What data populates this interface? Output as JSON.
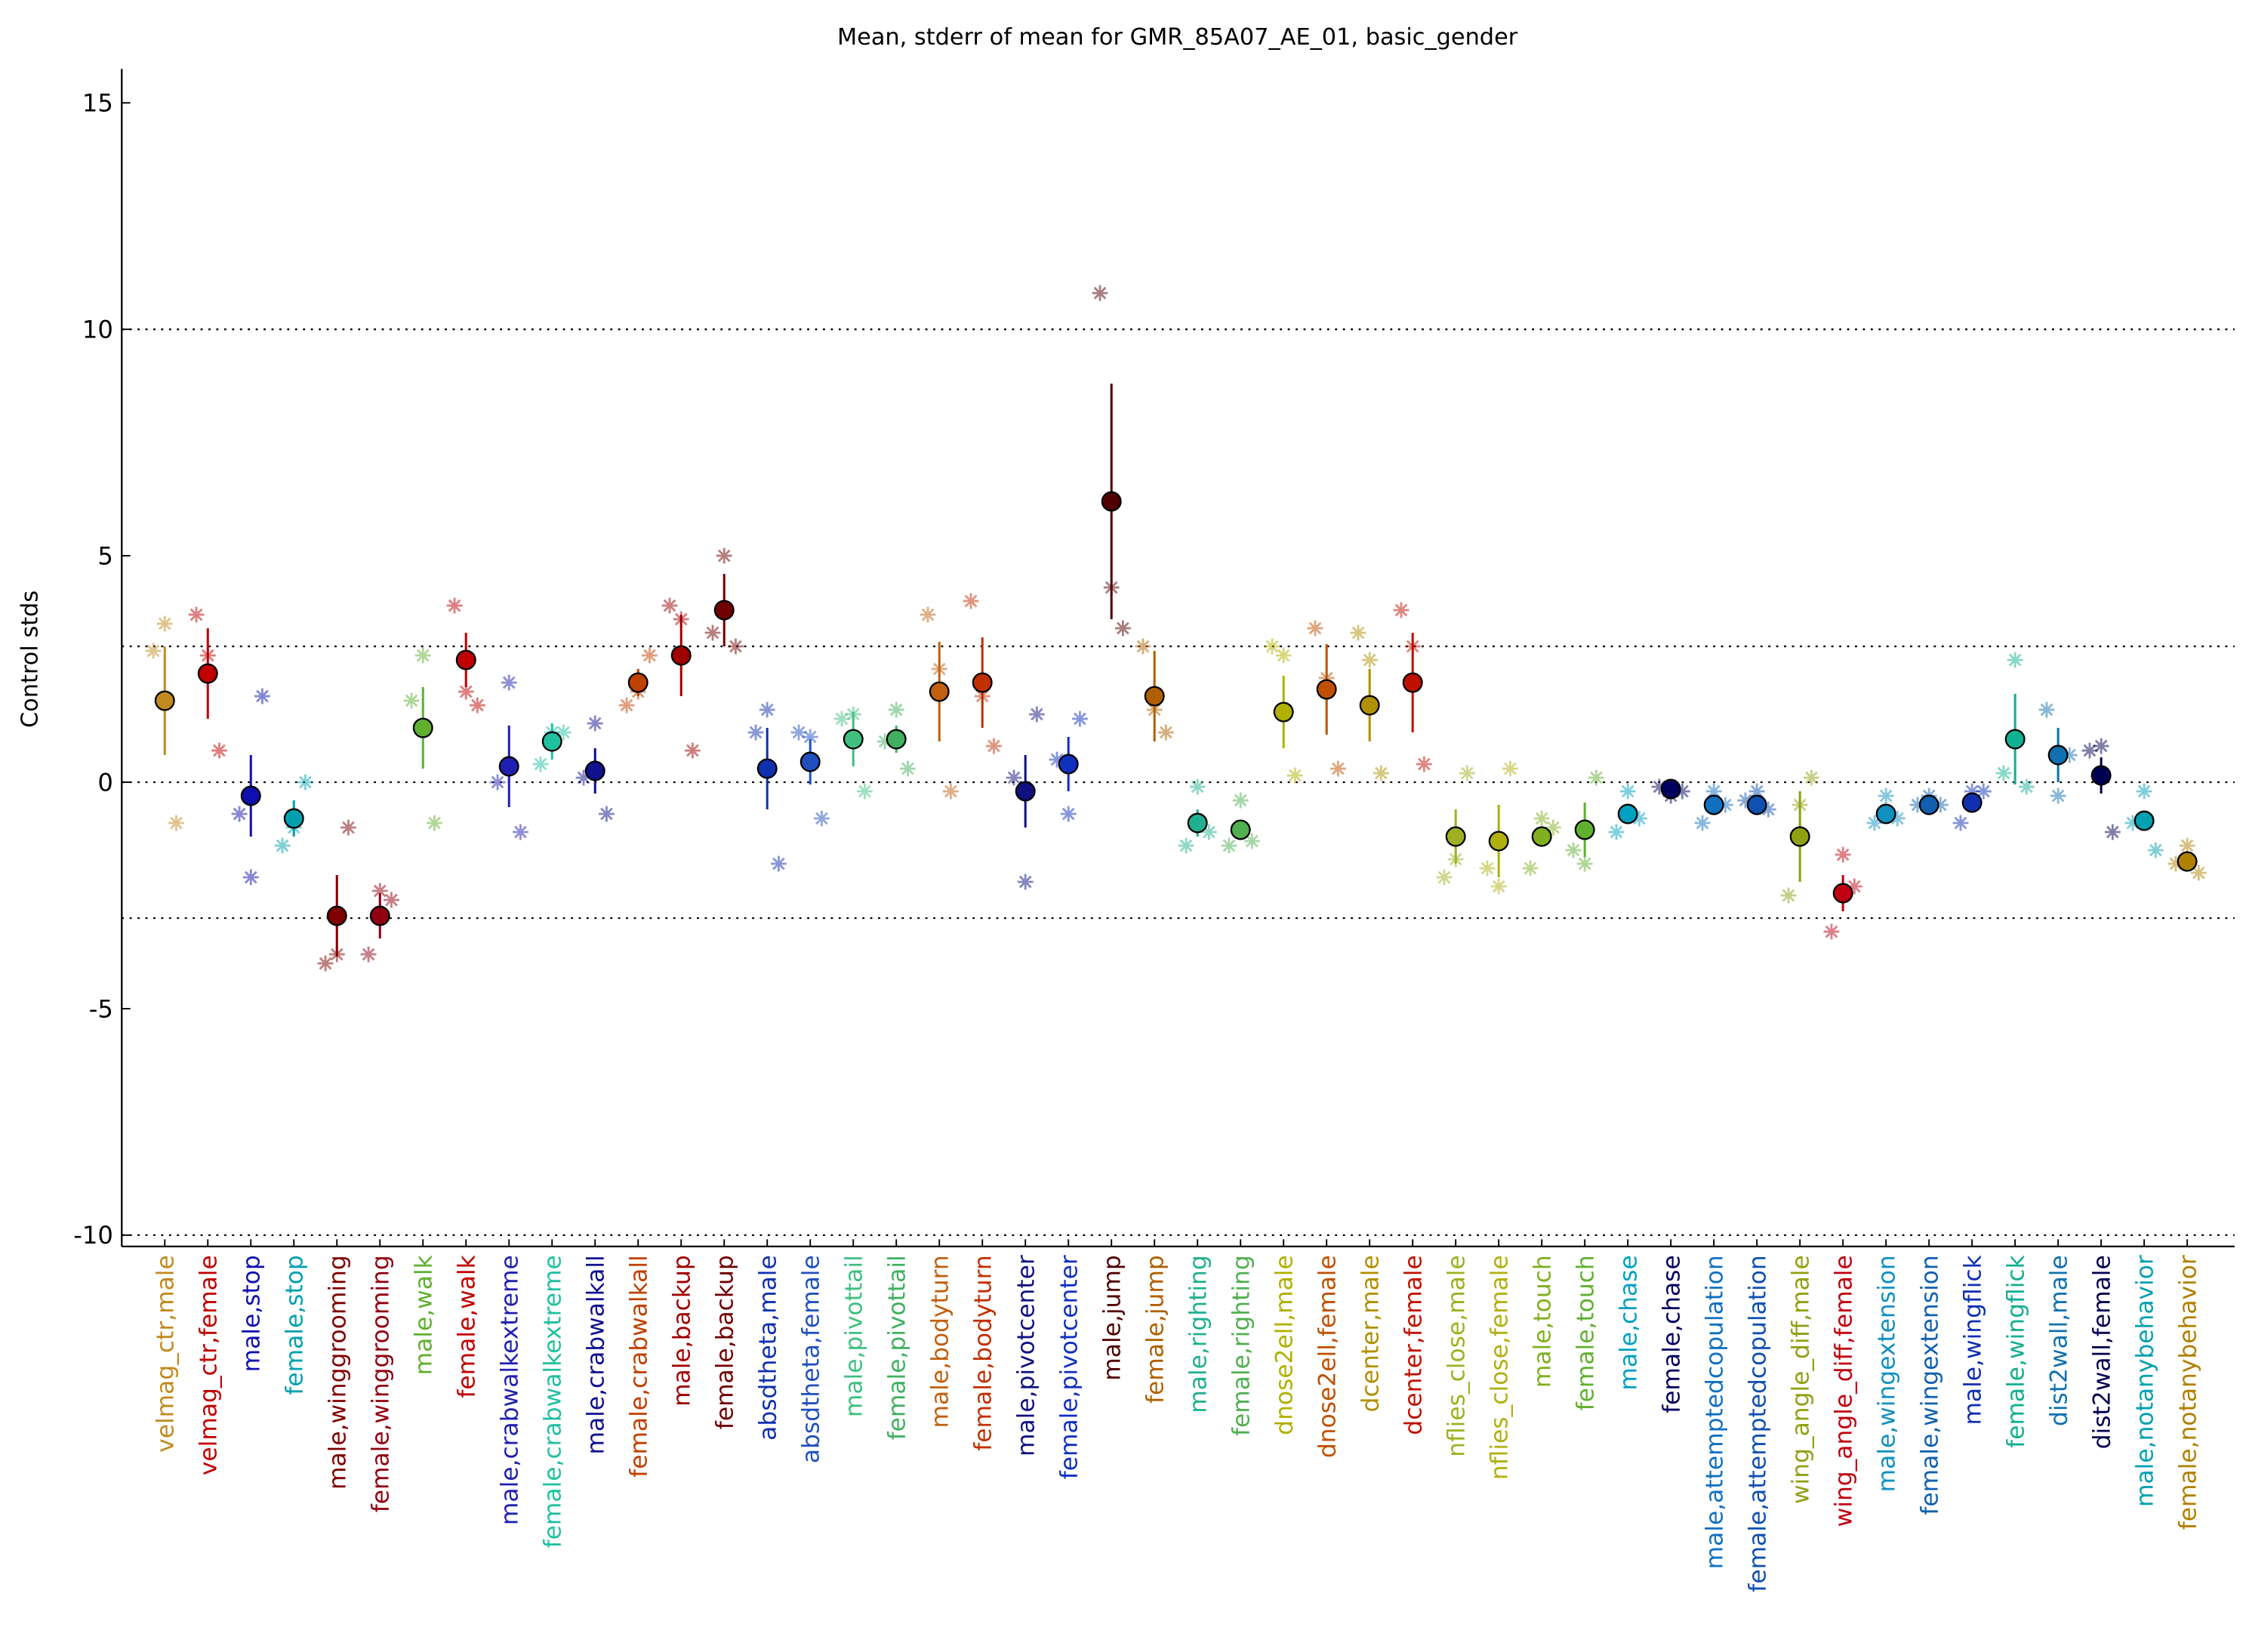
{
  "chart_data": {
    "type": "errorbar",
    "title": "Mean, stderr of mean for GMR_85A07_AE_01, basic_gender",
    "y_label": "Control stds",
    "ylim": [
      -10.25,
      15.75
    ],
    "yticks": [
      -10,
      -5,
      0,
      5,
      10,
      15
    ],
    "hlines": [
      -10,
      -3,
      0,
      3,
      10
    ],
    "categories": [
      "velmag_ctr,male",
      "velmag_ctr,female",
      "male,stop",
      "female,stop",
      "male,winggrooming",
      "female,winggrooming",
      "male,walk",
      "female,walk",
      "male,crabwalkextreme",
      "female,crabwalkextreme",
      "male,crabwalkall",
      "female,crabwalkall",
      "male,backup",
      "female,backup",
      "absdtheta,male",
      "absdtheta,female",
      "male,pivottail",
      "female,pivottail",
      "male,bodyturn",
      "female,bodyturn",
      "male,pivotcenter",
      "female,pivotcenter",
      "male,jump",
      "female,jump",
      "male,righting",
      "female,righting",
      "dnose2ell,male",
      "dnose2ell,female",
      "dcenter,male",
      "dcenter,female",
      "nflies_close,male",
      "nflies_close,female",
      "male,touch",
      "female,touch",
      "male,chase",
      "female,chase",
      "male,attemptedcopulation",
      "female,attemptedcopulation",
      "wing_angle_diff,male",
      "wing_angle_diff,female",
      "male,wingextension",
      "female,wingextension",
      "male,wingflick",
      "female,wingflick",
      "dist2wall,male",
      "dist2wall,female",
      "male,notanybehavior",
      "female,notanybehavior"
    ],
    "colors": [
      "#c08a20",
      "#c00000",
      "#1010b0",
      "#00a0b0",
      "#800000",
      "#900010",
      "#60b030",
      "#c00000",
      "#2020b0",
      "#20c0a0",
      "#101090",
      "#c04000",
      "#a00000",
      "#700000",
      "#1030b0",
      "#2050c0",
      "#40c080",
      "#40b060",
      "#c06010",
      "#c03000",
      "#101080",
      "#1030c0",
      "#500000",
      "#b06000",
      "#20b090",
      "#50b050",
      "#b0b000",
      "#c05000",
      "#b09000",
      "#c01000",
      "#a0b020",
      "#b0b010",
      "#80b020",
      "#60b030",
      "#00a0c0",
      "#000060",
      "#1070c0",
      "#1050b0",
      "#90a010",
      "#c00010",
      "#1090c0",
      "#1060b0",
      "#1030b0",
      "#10b090",
      "#1070b0",
      "#000050",
      "#00a0b0",
      "#b08000"
    ],
    "values": [
      1.8,
      2.4,
      -0.3,
      -0.8,
      -2.95,
      -2.95,
      1.2,
      2.7,
      0.35,
      0.9,
      0.25,
      2.2,
      2.8,
      3.8,
      0.3,
      0.45,
      0.95,
      0.95,
      2.0,
      2.2,
      -0.2,
      0.4,
      6.2,
      1.9,
      -0.9,
      -1.05,
      1.55,
      2.05,
      1.7,
      2.2,
      -1.2,
      -1.3,
      -1.2,
      -1.05,
      -0.7,
      -0.15,
      -0.5,
      -0.5,
      -1.2,
      -2.45,
      -0.7,
      -0.5,
      -0.45,
      0.95,
      0.6,
      0.15,
      -0.85,
      -1.75
    ],
    "errors": [
      1.2,
      1.0,
      0.9,
      0.4,
      0.9,
      0.5,
      0.9,
      0.6,
      0.9,
      0.4,
      0.5,
      0.3,
      0.9,
      0.8,
      0.9,
      0.5,
      0.6,
      0.3,
      1.1,
      1.0,
      0.8,
      0.6,
      2.6,
      1.0,
      0.3,
      0.2,
      0.8,
      1.0,
      0.8,
      1.1,
      0.6,
      0.8,
      0.2,
      0.6,
      0.2,
      0.1,
      0.1,
      0.1,
      1.0,
      0.4,
      0.1,
      0.1,
      0.2,
      1.0,
      0.6,
      0.4,
      0.2,
      0.15
    ],
    "points": [
      [
        2.9,
        3.5,
        -0.9
      ],
      [
        3.7,
        2.8,
        0.7
      ],
      [
        -0.7,
        -2.1,
        1.9
      ],
      [
        -1.4,
        -1.0,
        0.0
      ],
      [
        -4.0,
        -3.8,
        -1.0
      ],
      [
        -3.8,
        -2.4,
        -2.6
      ],
      [
        1.8,
        2.8,
        -0.9
      ],
      [
        3.9,
        2.0,
        1.7
      ],
      [
        0.0,
        2.2,
        -1.1
      ],
      [
        0.4,
        1.1,
        1.1
      ],
      [
        0.1,
        1.3,
        -0.7
      ],
      [
        1.7,
        2.0,
        2.8
      ],
      [
        3.9,
        3.6,
        0.7
      ],
      [
        3.3,
        5.0,
        3.0
      ],
      [
        1.1,
        1.6,
        -1.8
      ],
      [
        1.1,
        1.0,
        -0.8
      ],
      [
        1.4,
        1.5,
        -0.2
      ],
      [
        0.9,
        1.6,
        0.3
      ],
      [
        3.7,
        2.5,
        -0.2
      ],
      [
        4.0,
        1.9,
        0.8
      ],
      [
        0.1,
        -2.2,
        1.5
      ],
      [
        0.5,
        -0.7,
        1.4
      ],
      [
        10.8,
        4.3,
        3.4
      ],
      [
        3.0,
        1.6,
        1.1
      ],
      [
        -1.4,
        -0.1,
        -1.1
      ],
      [
        -1.4,
        -0.4,
        -1.3
      ],
      [
        3.0,
        2.8,
        0.15
      ],
      [
        3.4,
        2.3,
        0.3
      ],
      [
        3.3,
        2.7,
        0.2
      ],
      [
        3.8,
        3.0,
        0.4
      ],
      [
        -2.1,
        -1.7,
        0.2
      ],
      [
        -1.9,
        -2.3,
        0.3
      ],
      [
        -1.9,
        -0.8,
        -1.0
      ],
      [
        -1.5,
        -1.8,
        0.1
      ],
      [
        -1.1,
        -0.2,
        -0.8
      ],
      [
        -0.1,
        -0.3,
        -0.2
      ],
      [
        -0.9,
        -0.2,
        -0.5
      ],
      [
        -0.4,
        -0.2,
        -0.6
      ],
      [
        -2.5,
        -0.5,
        0.1
      ],
      [
        -3.3,
        -1.6,
        -2.3
      ],
      [
        -0.9,
        -0.3,
        -0.8
      ],
      [
        -0.5,
        -0.3,
        -0.5
      ],
      [
        -0.9,
        -0.2,
        -0.2
      ],
      [
        0.2,
        2.7,
        -0.1
      ],
      [
        1.6,
        -0.3,
        0.6
      ],
      [
        0.7,
        0.8,
        -1.1
      ],
      [
        -0.9,
        -0.2,
        -1.5
      ],
      [
        -1.8,
        -1.4,
        -2.0
      ]
    ]
  }
}
